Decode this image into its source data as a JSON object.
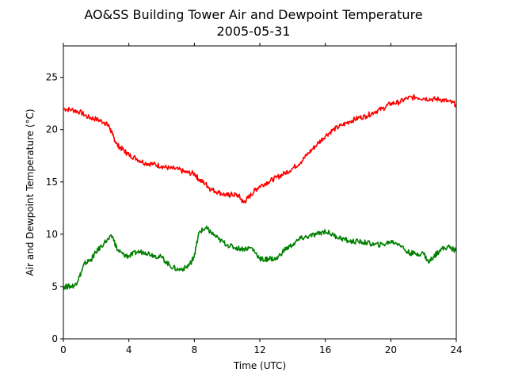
{
  "chart_data": {
    "type": "line",
    "title": "AO&SS Building Tower Air and Dewpoint Temperature",
    "subtitle": "2005-05-31",
    "xlabel": "Time (UTC)",
    "ylabel": "Air and Dewpoint Temperature (°C)",
    "xlim": [
      0,
      24
    ],
    "ylim": [
      0,
      28
    ],
    "xticks": [
      0,
      4,
      8,
      12,
      16,
      20,
      24
    ],
    "yticks": [
      0,
      5,
      10,
      15,
      20,
      25
    ],
    "grid": false,
    "series": [
      {
        "color": "#ff0000",
        "x": [
          0,
          0.5,
          1,
          1.5,
          2,
          2.5,
          2.8,
          3,
          3.3,
          3.7,
          4,
          4.5,
          5,
          5.5,
          6,
          6.5,
          7,
          7.5,
          8,
          8.3,
          8.7,
          9,
          9.5,
          10,
          10.3,
          10.7,
          11,
          11.3,
          11.7,
          12,
          12.5,
          13,
          13.5,
          14,
          14.5,
          15,
          15.5,
          16,
          16.5,
          17,
          17.5,
          18,
          18.5,
          19,
          19.5,
          20,
          20.5,
          21,
          21.5,
          22,
          22.5,
          23,
          23.5,
          24
        ],
        "values": [
          22.0,
          21.9,
          21.7,
          21.2,
          21.0,
          20.7,
          20.3,
          19.5,
          18.5,
          18.0,
          17.6,
          17.2,
          16.8,
          16.7,
          16.5,
          16.3,
          16.2,
          15.9,
          15.8,
          15.2,
          14.8,
          14.3,
          14.0,
          13.7,
          13.8,
          13.7,
          13.0,
          13.5,
          14.2,
          14.6,
          15.0,
          15.4,
          15.8,
          16.3,
          16.9,
          17.8,
          18.6,
          19.4,
          20.0,
          20.4,
          20.8,
          21.1,
          21.3,
          21.7,
          22.0,
          22.5,
          22.6,
          23.0,
          23.1,
          23.0,
          22.9,
          22.9,
          22.7,
          22.4
        ]
      },
      {
        "color": "#008000",
        "x": [
          0,
          0.3,
          0.7,
          1,
          1.3,
          1.7,
          2,
          2.5,
          3,
          3.3,
          3.7,
          4,
          4.5,
          5,
          5.5,
          6,
          6.5,
          7,
          7.5,
          7.8,
          8,
          8.3,
          8.7,
          9,
          9.5,
          10,
          10.5,
          11,
          11.5,
          12,
          12.3,
          12.5,
          13,
          13.5,
          14,
          14.5,
          15,
          15.5,
          16,
          16.5,
          17,
          17.5,
          18,
          18.5,
          19,
          19.5,
          20,
          20.5,
          21,
          21.5,
          22,
          22.3,
          22.7,
          23,
          23.5,
          24
        ],
        "values": [
          5.0,
          5.0,
          5.1,
          6.0,
          7.2,
          7.6,
          8.3,
          9.2,
          9.8,
          8.5,
          8.0,
          7.9,
          8.3,
          8.3,
          8.0,
          7.8,
          7.0,
          6.6,
          6.8,
          7.3,
          8.0,
          10.2,
          10.6,
          10.2,
          9.5,
          9.0,
          8.7,
          8.6,
          8.7,
          7.7,
          7.5,
          7.7,
          7.6,
          8.5,
          9.0,
          9.6,
          9.8,
          10.0,
          10.3,
          9.9,
          9.6,
          9.3,
          9.3,
          9.2,
          9.0,
          9.0,
          9.3,
          9.1,
          8.3,
          8.1,
          8.2,
          7.3,
          8.0,
          8.5,
          8.8,
          8.4
        ]
      }
    ]
  }
}
